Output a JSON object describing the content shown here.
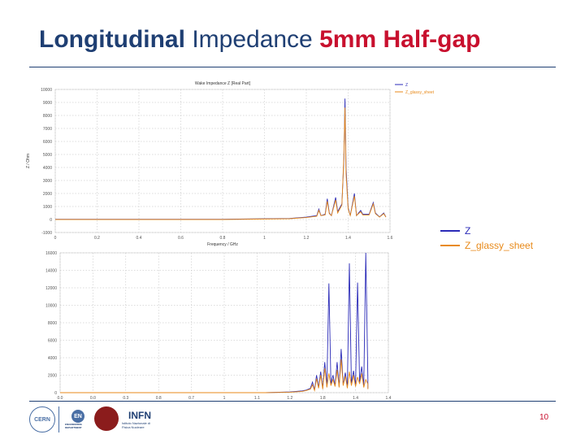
{
  "slide": {
    "title_part1": "Longitudinal",
    "title_part2": "Impedance",
    "title_part3": "5mm Half-gap",
    "page_number": "10",
    "logos": {
      "cern": "CERN",
      "en": "EN",
      "en_caption": "ENGINEERING DEPARTMENT",
      "infn": "INFN",
      "infn_caption": "Istituto Nazionale di Fisica Nucleare"
    }
  },
  "colors": {
    "series_z": "#2b2bb8",
    "series_glassy": "#e88a1a",
    "title_blue": "#1f3f73",
    "title_red": "#c8102e"
  },
  "legend": {
    "z": "Z",
    "glassy": "Z_glassy_sheet"
  },
  "chart_data": [
    {
      "type": "line",
      "title": "Wake Impedance Z [Real Part]",
      "xlabel": "Frequency / GHz",
      "ylabel": "Z / Ohm",
      "xlim": [
        0,
        1.6
      ],
      "ylim": [
        -1000,
        10000
      ],
      "xticks": [
        "0",
        "0.2",
        "0.4",
        "0.6",
        "0.8",
        "1",
        "1.2",
        "1.4",
        "1.6"
      ],
      "yticks": [
        "-1000",
        "0",
        "1000",
        "2000",
        "3000",
        "4000",
        "5000",
        "6000",
        "7000",
        "8000",
        "9000",
        "10000"
      ],
      "grid": true,
      "legend_position": "top-right",
      "series": [
        {
          "name": "Z",
          "points": [
            [
              0,
              20
            ],
            [
              0.8,
              20
            ],
            [
              1.12,
              80
            ],
            [
              1.2,
              180
            ],
            [
              1.25,
              300
            ],
            [
              1.26,
              800
            ],
            [
              1.27,
              300
            ],
            [
              1.29,
              400
            ],
            [
              1.3,
              1600
            ],
            [
              1.31,
              500
            ],
            [
              1.32,
              300
            ],
            [
              1.34,
              1700
            ],
            [
              1.35,
              600
            ],
            [
              1.37,
              1200
            ],
            [
              1.38,
              4700
            ],
            [
              1.385,
              9300
            ],
            [
              1.39,
              4000
            ],
            [
              1.4,
              900
            ],
            [
              1.41,
              300
            ],
            [
              1.43,
              2000
            ],
            [
              1.44,
              300
            ],
            [
              1.46,
              700
            ],
            [
              1.47,
              400
            ],
            [
              1.5,
              400
            ],
            [
              1.52,
              1300
            ],
            [
              1.53,
              500
            ],
            [
              1.55,
              200
            ],
            [
              1.57,
              500
            ],
            [
              1.58,
              200
            ]
          ]
        },
        {
          "name": "Z_glassy_sheet",
          "points": [
            [
              0,
              0
            ],
            [
              0.8,
              0
            ],
            [
              1.12,
              60
            ],
            [
              1.2,
              150
            ],
            [
              1.25,
              250
            ],
            [
              1.26,
              700
            ],
            [
              1.27,
              300
            ],
            [
              1.29,
              350
            ],
            [
              1.3,
              1400
            ],
            [
              1.31,
              450
            ],
            [
              1.32,
              300
            ],
            [
              1.34,
              1500
            ],
            [
              1.35,
              500
            ],
            [
              1.37,
              1100
            ],
            [
              1.38,
              5000
            ],
            [
              1.385,
              8600
            ],
            [
              1.39,
              3500
            ],
            [
              1.4,
              800
            ],
            [
              1.41,
              300
            ],
            [
              1.43,
              1800
            ],
            [
              1.44,
              300
            ],
            [
              1.46,
              600
            ],
            [
              1.47,
              350
            ],
            [
              1.5,
              350
            ],
            [
              1.52,
              1200
            ],
            [
              1.53,
              450
            ],
            [
              1.55,
              180
            ],
            [
              1.57,
              450
            ],
            [
              1.58,
              180
            ]
          ]
        }
      ]
    },
    {
      "type": "line",
      "title": "",
      "xlabel": "",
      "ylabel": "",
      "xlim": [
        0,
        1.6
      ],
      "ylim": [
        0,
        16000
      ],
      "xticks": [
        "0.0",
        "0.0",
        "0.3",
        "0.8",
        "0.7",
        "1",
        "1.1",
        "1.2",
        "1.8",
        "1.4",
        "1.4"
      ],
      "yticks": [
        "0",
        "2000",
        "4000",
        "6000",
        "8000",
        "10000",
        "12000",
        "14000",
        "16000"
      ],
      "grid": true,
      "series": [
        {
          "name": "Z",
          "points": [
            [
              0,
              0
            ],
            [
              1.0,
              0
            ],
            [
              1.12,
              80
            ],
            [
              1.18,
              200
            ],
            [
              1.2,
              300
            ],
            [
              1.22,
              500
            ],
            [
              1.23,
              1200
            ],
            [
              1.24,
              300
            ],
            [
              1.25,
              2000
            ],
            [
              1.26,
              600
            ],
            [
              1.27,
              2400
            ],
            [
              1.28,
              500
            ],
            [
              1.29,
              3500
            ],
            [
              1.3,
              700
            ],
            [
              1.31,
              12500
            ],
            [
              1.32,
              1000
            ],
            [
              1.33,
              2000
            ],
            [
              1.34,
              800
            ],
            [
              1.35,
              3500
            ],
            [
              1.36,
              700
            ],
            [
              1.37,
              5000
            ],
            [
              1.38,
              900
            ],
            [
              1.39,
              2300
            ],
            [
              1.4,
              600
            ],
            [
              1.41,
              14800
            ],
            [
              1.42,
              1000
            ],
            [
              1.43,
              2500
            ],
            [
              1.44,
              800
            ],
            [
              1.45,
              12600
            ],
            [
              1.46,
              1200
            ],
            [
              1.47,
              3000
            ],
            [
              1.48,
              700
            ],
            [
              1.49,
              16000
            ],
            [
              1.5,
              1500
            ],
            [
              1.5,
              500
            ]
          ]
        },
        {
          "name": "Z_glassy_sheet",
          "points": [
            [
              0,
              0
            ],
            [
              1.0,
              0
            ],
            [
              1.12,
              60
            ],
            [
              1.18,
              150
            ],
            [
              1.2,
              250
            ],
            [
              1.22,
              400
            ],
            [
              1.23,
              900
            ],
            [
              1.24,
              250
            ],
            [
              1.25,
              1600
            ],
            [
              1.26,
              500
            ],
            [
              1.27,
              2000
            ],
            [
              1.28,
              400
            ],
            [
              1.29,
              2800
            ],
            [
              1.3,
              600
            ],
            [
              1.31,
              2200
            ],
            [
              1.32,
              800
            ],
            [
              1.33,
              1500
            ],
            [
              1.34,
              700
            ],
            [
              1.35,
              2600
            ],
            [
              1.36,
              600
            ],
            [
              1.37,
              3800
            ],
            [
              1.38,
              800
            ],
            [
              1.39,
              1900
            ],
            [
              1.4,
              500
            ],
            [
              1.41,
              2400
            ],
            [
              1.42,
              800
            ],
            [
              1.43,
              2000
            ],
            [
              1.44,
              700
            ],
            [
              1.45,
              1800
            ],
            [
              1.46,
              1000
            ],
            [
              1.47,
              2200
            ],
            [
              1.48,
              600
            ],
            [
              1.49,
              1500
            ],
            [
              1.5,
              1000
            ],
            [
              1.5,
              400
            ]
          ]
        }
      ]
    }
  ]
}
